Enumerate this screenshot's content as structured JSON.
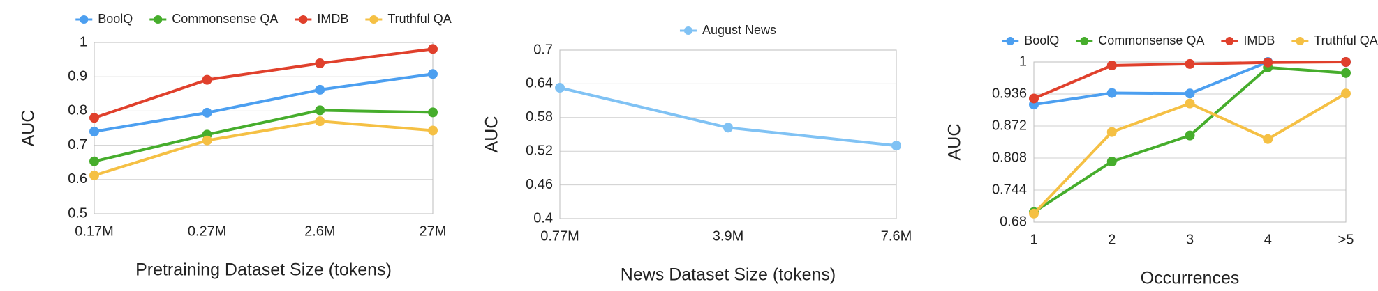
{
  "chart_data": [
    {
      "type": "line",
      "x_label": "Pretraining Dataset Size (tokens)",
      "y_label": "AUC",
      "categories": [
        "0.17M",
        "0.27M",
        "2.6M",
        "27M"
      ],
      "ylim": [
        0.5,
        1
      ],
      "yticks": [
        0.5,
        0.6,
        0.7,
        0.8,
        0.9,
        1
      ],
      "grid": true,
      "series": [
        {
          "name": "BoolQ",
          "color": "#4c9ff0",
          "values": [
            0.74,
            0.795,
            0.862,
            0.908
          ]
        },
        {
          "name": "Commonsense QA",
          "color": "#46ad2c",
          "values": [
            0.653,
            0.731,
            0.802,
            0.796
          ]
        },
        {
          "name": "IMDB",
          "color": "#e0402c",
          "values": [
            0.78,
            0.891,
            0.939,
            0.981
          ]
        },
        {
          "name": "Truthful QA",
          "color": "#f5c044",
          "values": [
            0.612,
            0.714,
            0.77,
            0.743
          ]
        }
      ]
    },
    {
      "type": "line",
      "x_label": "News Dataset Size (tokens)",
      "y_label": "AUC",
      "categories": [
        "0.77M",
        "3.9M",
        "7.6M"
      ],
      "ylim": [
        0.4,
        0.7
      ],
      "yticks": [
        0.4,
        0.46,
        0.52,
        0.58,
        0.64,
        0.7
      ],
      "grid": true,
      "series": [
        {
          "name": "August News",
          "color": "#80c2f4",
          "values": [
            0.633,
            0.562,
            0.53
          ]
        }
      ]
    },
    {
      "type": "line",
      "x_label": "Occurrences",
      "y_label": "AUC",
      "categories": [
        "1",
        "2",
        "3",
        "4",
        ">5"
      ],
      "ylim": [
        0.68,
        1
      ],
      "yticks": [
        0.68,
        0.744,
        0.808,
        0.872,
        0.936,
        1
      ],
      "grid": true,
      "series": [
        {
          "name": "BoolQ",
          "color": "#4c9ff0",
          "values": [
            0.915,
            0.938,
            0.937,
            1.0,
            1.0
          ]
        },
        {
          "name": "Commonsense QA",
          "color": "#46ad2c",
          "values": [
            0.7,
            0.801,
            0.853,
            0.989,
            0.978
          ]
        },
        {
          "name": "IMDB",
          "color": "#e0402c",
          "values": [
            0.927,
            0.993,
            0.996,
            0.999,
            1.0
          ]
        },
        {
          "name": "Truthful QA",
          "color": "#f5c044",
          "values": [
            0.697,
            0.86,
            0.917,
            0.846,
            0.937
          ]
        }
      ]
    }
  ]
}
